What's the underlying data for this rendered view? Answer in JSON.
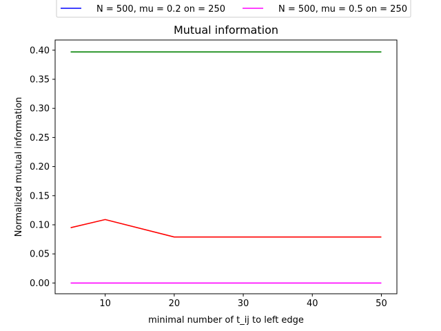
{
  "chart_data": {
    "type": "line",
    "title": "Mutual information",
    "xlabel": "minimal number of t_ij to left edge",
    "ylabel": "Normalized mutual information",
    "x": [
      5,
      10,
      20,
      30,
      40,
      50
    ],
    "xticks": [
      10,
      20,
      30,
      40,
      50
    ],
    "yticks": [
      0.0,
      0.05,
      0.1,
      0.15,
      0.2,
      0.25,
      0.3,
      0.35,
      0.4
    ],
    "xlim": [
      2.75,
      52.25
    ],
    "ylim": [
      -0.0185,
      0.4175
    ],
    "grid": false,
    "legend_placement": "top-center, outside plot",
    "series": [
      {
        "name": "N = 500, mu = 0.2 on = 250",
        "color": "#0000ff",
        "values": [
          null,
          null,
          null,
          null,
          null,
          null
        ],
        "in_legend": true
      },
      {
        "name": "N = 500, mu = 0.5 on = 250",
        "color": "#ff00ff",
        "values": [
          0.0,
          0.0,
          0.0,
          0.0,
          0.0,
          0.0
        ],
        "in_legend": true
      },
      {
        "color": "#008000",
        "values": [
          0.397,
          0.397,
          0.397,
          0.397,
          0.397,
          0.397
        ],
        "in_legend": false
      },
      {
        "color": "#ff0000",
        "values": [
          0.095,
          0.109,
          0.079,
          0.079,
          0.079,
          0.079
        ],
        "in_legend": false
      }
    ]
  }
}
